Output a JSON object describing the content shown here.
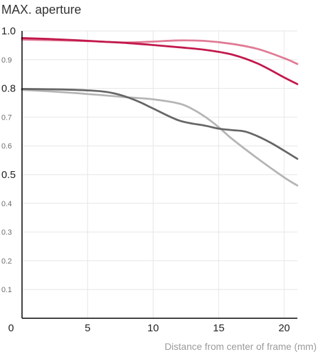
{
  "chart_data": {
    "type": "line",
    "title": "MAX. aperture",
    "xlabel": "Distance from center of frame (mm)",
    "ylabel": "",
    "xlim": [
      0,
      21
    ],
    "ylim": [
      0,
      1.0
    ],
    "x_ticks": [
      "0",
      "5",
      "10",
      "15",
      "20"
    ],
    "y_ticks": [
      "1.0",
      "0.9",
      "0.8",
      "0.7",
      "0.6",
      "0.5",
      "0.4",
      "0.3",
      "0.2",
      "0.1"
    ],
    "grid": true,
    "series": [
      {
        "color": "#e07b95",
        "x": [
          0,
          2,
          4,
          6,
          8,
          10,
          12,
          14,
          16,
          18,
          20,
          21
        ],
        "values": [
          0.97,
          0.968,
          0.966,
          0.963,
          0.96,
          0.963,
          0.967,
          0.965,
          0.955,
          0.937,
          0.905,
          0.885
        ]
      },
      {
        "color": "#c2184b",
        "x": [
          0,
          2,
          4,
          6,
          8,
          10,
          12,
          14,
          16,
          18,
          20,
          21
        ],
        "values": [
          0.975,
          0.972,
          0.968,
          0.963,
          0.958,
          0.951,
          0.943,
          0.934,
          0.918,
          0.886,
          0.838,
          0.815
        ]
      },
      {
        "color": "#b5b5b5",
        "x": [
          0,
          2,
          4,
          6,
          8,
          10,
          12,
          13,
          14,
          15,
          16,
          18,
          20,
          21
        ],
        "values": [
          0.795,
          0.79,
          0.784,
          0.777,
          0.769,
          0.762,
          0.747,
          0.728,
          0.7,
          0.665,
          0.625,
          0.555,
          0.49,
          0.462
        ]
      },
      {
        "color": "#666666",
        "x": [
          0,
          2,
          4,
          6,
          7,
          8,
          9,
          10,
          12,
          14,
          15,
          16,
          17,
          18,
          19,
          20,
          21
        ],
        "values": [
          0.798,
          0.797,
          0.795,
          0.79,
          0.783,
          0.77,
          0.752,
          0.73,
          0.688,
          0.67,
          0.66,
          0.655,
          0.65,
          0.633,
          0.61,
          0.583,
          0.555
        ]
      }
    ]
  }
}
